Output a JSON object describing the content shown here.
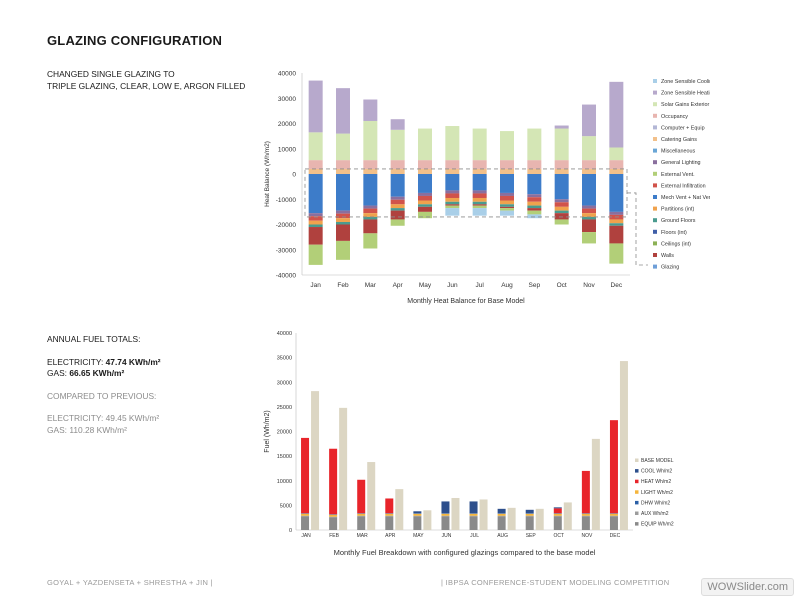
{
  "page": {
    "title": "GLAZING CONFIGURATION",
    "change_line1": "CHANGED SINGLE GLAZING TO",
    "change_line2": "TRIPLE GLAZING, CLEAR, LOW E, ARGON FILLED",
    "totals_heading": "ANNUAL FUEL TOTALS:",
    "electricity_label": "ELECTRICITY:",
    "electricity_value": "47.74 KWh/m²",
    "gas_label": "GAS:",
    "gas_value": "66.65 KWh/m²",
    "compared_heading": "COMPARED TO PREVIOUS:",
    "prev_electricity_label": "ELECTRICITY:",
    "prev_electricity_value": "49.45 KWh/m²",
    "prev_gas_label": "GAS:",
    "prev_gas_value": "110.28 KWh/m²",
    "footer_left": "GOYAL + YAZDENSETA + SHRESTHA + JIN |",
    "footer_right": "| IBPSA CONFERENCE-STUDENT MODELING COMPETITION",
    "watermark": "WOWSlider.com"
  },
  "chart_data": [
    {
      "type": "bar",
      "stacked": true,
      "title": "",
      "xlabel": "Monthly Heat Balance for Base Model",
      "ylabel": "Heat Balance (Wh/m2)",
      "ylim": [
        -40000,
        40000
      ],
      "yticks": [
        40000,
        30000,
        20000,
        10000,
        0,
        -10000,
        -20000,
        -30000,
        -40000
      ],
      "categories": [
        "Jan",
        "Feb",
        "Mar",
        "Apr",
        "May",
        "Jun",
        "Jul",
        "Aug",
        "Sep",
        "Oct",
        "Nov",
        "Dec"
      ],
      "legend_position": "right",
      "legend": [
        {
          "name": "Zone Sensible Cooling",
          "color": "#a9cfe8"
        },
        {
          "name": "Zone Sensible Heating",
          "color": "#b7a9cc"
        },
        {
          "name": "Solar Gains Exterior Windows",
          "color": "#d4e6b5"
        },
        {
          "name": "Occupancy",
          "color": "#e8b5b0"
        },
        {
          "name": "Computer + Equip",
          "color": "#b3b7d6"
        },
        {
          "name": "Catering Gains",
          "color": "#f2c08a"
        },
        {
          "name": "Miscellaneous",
          "color": "#6aa6d6"
        },
        {
          "name": "General Lighting",
          "color": "#8a6f9e"
        },
        {
          "name": "External Vent.",
          "color": "#b2cf78"
        },
        {
          "name": "External Infiltration",
          "color": "#d1534b"
        },
        {
          "name": "Mech Vent + Nat Vent + Infiltration",
          "color": "#3d7cc9"
        },
        {
          "name": "Partitions (int)",
          "color": "#f0a24d"
        },
        {
          "name": "Ground Floors",
          "color": "#4a9b8f"
        },
        {
          "name": "Floors (int)",
          "color": "#3f5fa8"
        },
        {
          "name": "Ceilings (int)",
          "color": "#8cb155"
        },
        {
          "name": "Walls",
          "color": "#b0413e"
        },
        {
          "name": "Glazing",
          "color": "#6f9fd8"
        }
      ],
      "positive_series": [
        {
          "name": "Catering Gains",
          "values": [
            2000,
            2000,
            2000,
            2000,
            2000,
            2000,
            2000,
            2000,
            2000,
            2000,
            2000,
            2000
          ]
        },
        {
          "name": "Occupancy",
          "values": [
            3500,
            3500,
            3500,
            3500,
            3500,
            3500,
            3500,
            3500,
            3500,
            3500,
            3500,
            3500
          ]
        },
        {
          "name": "Solar Gains Exterior Windows",
          "values": [
            11000,
            10500,
            15500,
            12000,
            12500,
            13500,
            12500,
            11500,
            12500,
            12500,
            9500,
            5000
          ]
        },
        {
          "name": "Zone Sensible Heating",
          "values": [
            20500,
            18000,
            8500,
            4200,
            0,
            0,
            0,
            0,
            0,
            1200,
            12500,
            26000
          ]
        }
      ],
      "negative_series": [
        {
          "name": "Mech Vent + Nat Vent + Infiltration",
          "values": [
            -15500,
            -14500,
            -12500,
            -9000,
            -7500,
            -6500,
            -6500,
            -7500,
            -8000,
            -10000,
            -12500,
            -15000
          ]
        },
        {
          "name": "General Lighting",
          "values": [
            -1200,
            -1200,
            -1200,
            -1200,
            -1200,
            -1200,
            -1200,
            -1200,
            -1200,
            -1200,
            -1200,
            -1200
          ]
        },
        {
          "name": "External Infiltration",
          "values": [
            -1800,
            -1800,
            -1800,
            -1800,
            -1800,
            -1800,
            -1800,
            -1800,
            -1800,
            -1800,
            -1800,
            -1800
          ]
        },
        {
          "name": "Partitions (int)",
          "values": [
            -1500,
            -1500,
            -1500,
            -1500,
            -1500,
            -1500,
            -1500,
            -1500,
            -1500,
            -1500,
            -1500,
            -1500
          ]
        },
        {
          "name": "Ground Floors",
          "values": [
            -1000,
            -1000,
            -1000,
            -1000,
            -1000,
            -1000,
            -1000,
            -1000,
            -1000,
            -1000,
            -1000,
            -1000
          ]
        },
        {
          "name": "Walls",
          "values": [
            -7000,
            -6500,
            -5500,
            -3500,
            -2000,
            -500,
            -500,
            -500,
            -1000,
            -2500,
            -5000,
            -7000
          ]
        },
        {
          "name": "External Vent.",
          "values": [
            -8000,
            -7500,
            -6000,
            -2500,
            -2500,
            -1000,
            -1000,
            -1000,
            -1500,
            -2000,
            -4500,
            -8000
          ]
        },
        {
          "name": "Zone Sensible Cooling",
          "values": [
            0,
            0,
            0,
            0,
            0,
            -3000,
            -3000,
            -2000,
            -1500,
            0,
            0,
            0
          ]
        }
      ]
    },
    {
      "type": "bar",
      "stacked": true,
      "title": "",
      "xlabel": "Monthly Fuel Breakdown with configured glazings compared to the base model",
      "ylabel": "Fuel (Wh/m2)",
      "ylim": [
        0,
        40000
      ],
      "yticks": [
        40000,
        35000,
        30000,
        25000,
        20000,
        15000,
        10000,
        5000,
        0
      ],
      "categories": [
        "JAN",
        "FEB",
        "MAR",
        "APR",
        "MAY",
        "JUN",
        "JUL",
        "AUG",
        "SEP",
        "OCT",
        "NOV",
        "DEC"
      ],
      "legend_position": "right",
      "legend": [
        {
          "name": "BASE MODEL",
          "color": "#dcd6c3"
        },
        {
          "name": "COOL Wh/m2",
          "color": "#2d4f8c"
        },
        {
          "name": "HEAT Wh/m2",
          "color": "#e8242a"
        },
        {
          "name": "LIGHT Wh/m2",
          "color": "#f5b53b"
        },
        {
          "name": "DHW Wh/m2",
          "color": "#2a5fa6"
        },
        {
          "name": "AUX Wh/m2",
          "color": "#9c9c9c"
        },
        {
          "name": "EQUIP Wh/m2",
          "color": "#8a8a8a"
        }
      ],
      "series": [
        {
          "name": "EQUIP Wh/m2",
          "values": [
            2800,
            2600,
            2800,
            2800,
            2800,
            2800,
            2800,
            2800,
            2800,
            2800,
            2800,
            2800
          ]
        },
        {
          "name": "AUX Wh/m2",
          "values": [
            100,
            100,
            100,
            100,
            100,
            100,
            100,
            100,
            100,
            100,
            100,
            100
          ]
        },
        {
          "name": "LIGHT Wh/m2",
          "values": [
            400,
            400,
            400,
            400,
            400,
            400,
            400,
            400,
            400,
            400,
            400,
            400
          ]
        },
        {
          "name": "DHW Wh/m2",
          "values": [
            100,
            100,
            100,
            100,
            100,
            100,
            100,
            100,
            100,
            100,
            100,
            100
          ]
        },
        {
          "name": "HEAT Wh/m2",
          "values": [
            15300,
            13300,
            6800,
            3000,
            0,
            0,
            0,
            0,
            0,
            1000,
            8600,
            18900
          ]
        },
        {
          "name": "COOL Wh/m2",
          "values": [
            0,
            0,
            0,
            0,
            400,
            2400,
            2400,
            900,
            700,
            200,
            0,
            0
          ]
        }
      ],
      "base_model": {
        "name": "BASE MODEL",
        "values": [
          28200,
          24800,
          13800,
          8300,
          4000,
          6500,
          6200,
          4500,
          4300,
          5600,
          18500,
          34300
        ]
      }
    }
  ]
}
